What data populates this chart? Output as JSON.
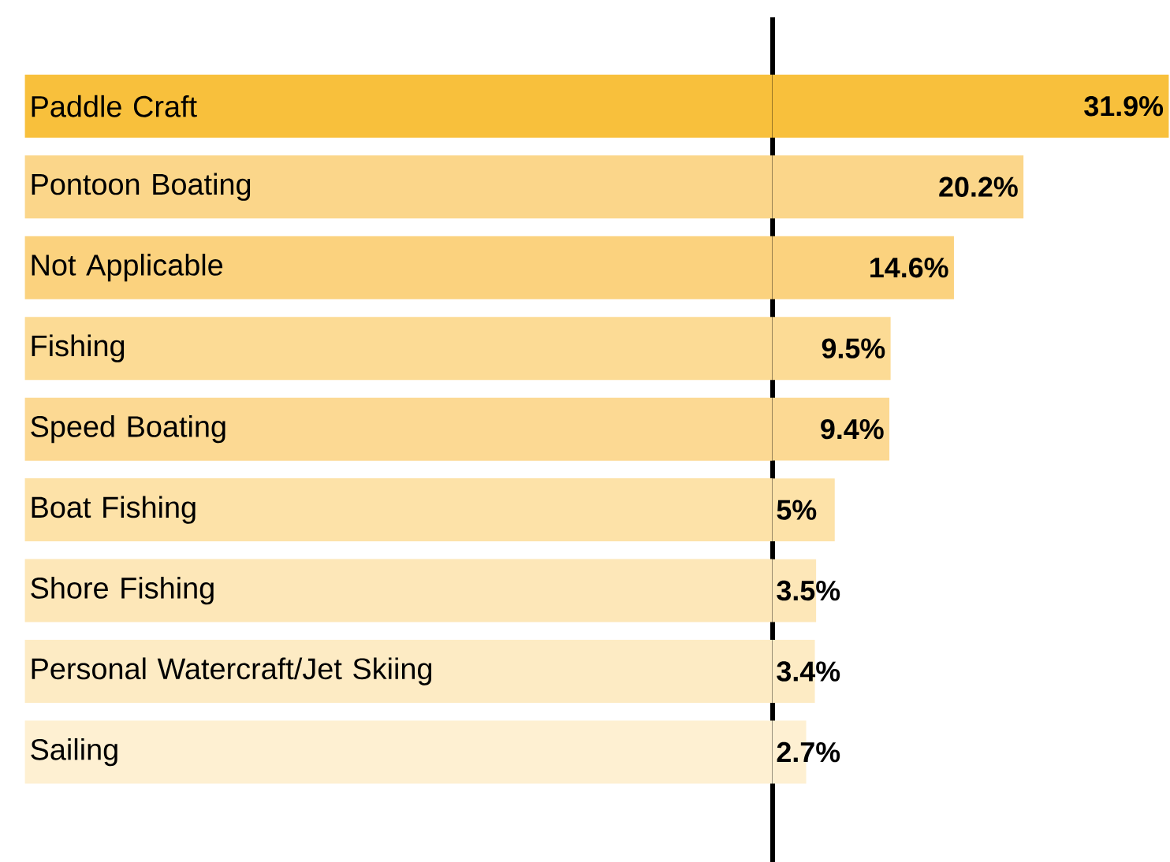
{
  "chart_data": {
    "type": "bar",
    "orientation": "horizontal",
    "categories": [
      "Paddle Craft",
      "Pontoon Boating",
      "Not Applicable",
      "Fishing",
      "Speed Boating",
      "Boat Fishing",
      "Shore Fishing",
      "Personal Watercraft/Jet Skiing",
      "Sailing"
    ],
    "values": [
      31.9,
      20.2,
      14.6,
      9.5,
      9.4,
      5,
      3.5,
      3.4,
      2.7
    ],
    "value_labels": [
      "31.9%",
      "20.2%",
      "14.6%",
      "9.5%",
      "9.4%",
      "5%",
      "3.5%",
      "3.4%",
      "2.7%"
    ],
    "colors": [
      "#f8c03c",
      "#fbd68a",
      "#fbd27e",
      "#fcdb95",
      "#fcd993",
      "#fde2a8",
      "#fde7b8",
      "#fdebc4",
      "#fef0d2"
    ],
    "xlim": [
      0,
      32
    ]
  }
}
